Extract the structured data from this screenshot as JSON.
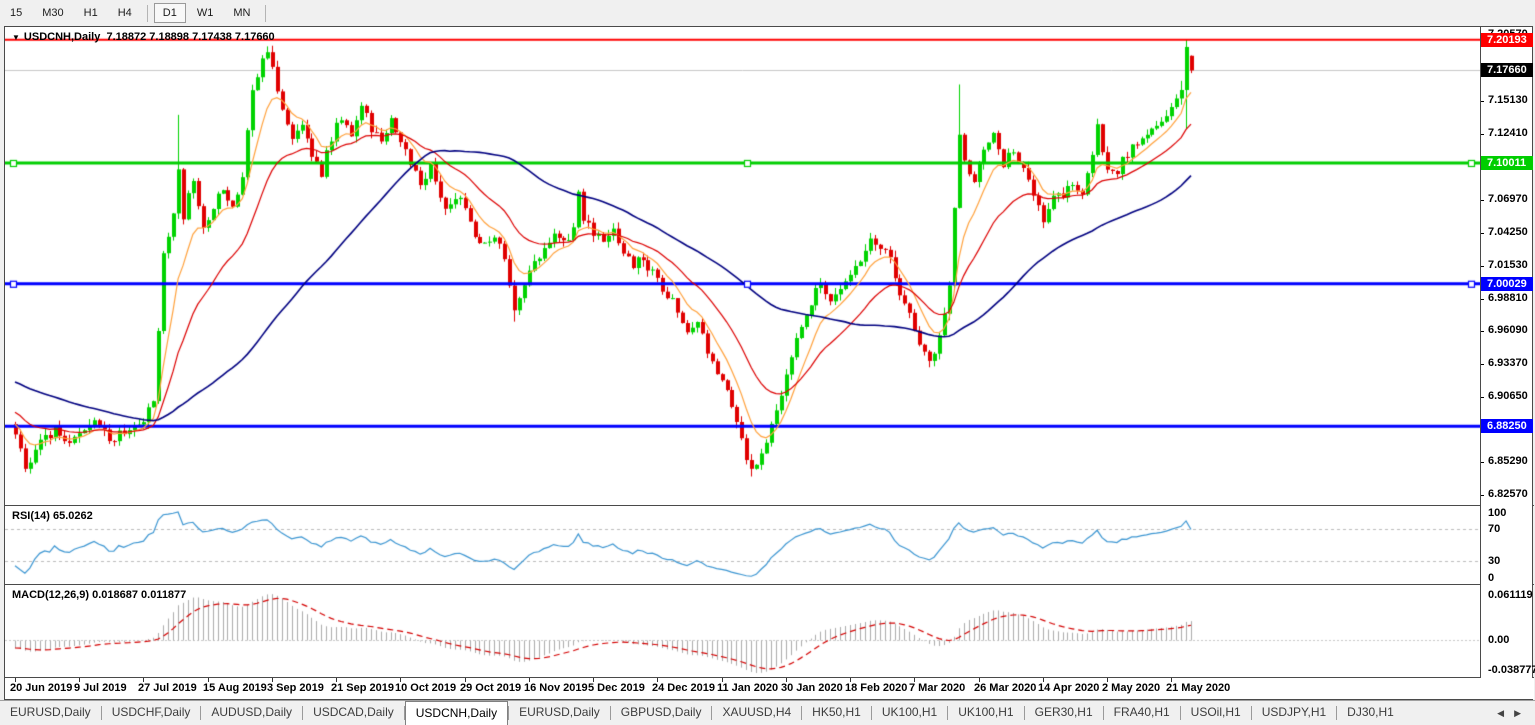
{
  "toolbar": {
    "timeframes": [
      {
        "label": "15",
        "active": false,
        "sep_after": false
      },
      {
        "label": "M30",
        "active": false,
        "sep_after": false
      },
      {
        "label": "H1",
        "active": false,
        "sep_after": false
      },
      {
        "label": "H4",
        "active": false,
        "sep_after": true
      },
      {
        "label": "D1",
        "active": true,
        "sep_after": false
      },
      {
        "label": "W1",
        "active": false,
        "sep_after": false
      },
      {
        "label": "MN",
        "active": false,
        "sep_after": true
      }
    ]
  },
  "chart": {
    "title_symbol": "USDCNH,Daily",
    "title_ohlc": "7.18872 7.18898 7.17438 7.17660"
  },
  "indicators": {
    "rsi_label": "RSI(14) 65.0262",
    "macd_label": "MACD(12,26,9) 0.018687 0.011877",
    "rsi_ticks": [
      "100",
      "70",
      "30",
      "0"
    ],
    "macd_ticks": [
      "0.061119",
      "0.00",
      "-0.038777"
    ]
  },
  "chart_data": {
    "type": "candlestick",
    "symbol": "USDCNH",
    "timeframe": "Daily",
    "last_bar": {
      "open": 7.18872,
      "high": 7.18898,
      "low": 7.17438,
      "close": 7.1766
    },
    "num_bars": 239,
    "bars_per_x_tick": 13,
    "x_tick_labels": [
      "20 Jun 2019",
      "9 Jul 2019",
      "27 Jul 2019",
      "15 Aug 2019",
      "3 Sep 2019",
      "21 Sep 2019",
      "10 Oct 2019",
      "29 Oct 2019",
      "16 Nov 2019",
      "5 Dec 2019",
      "24 Dec 2019",
      "11 Jan 2020",
      "30 Jan 2020",
      "18 Feb 2020",
      "7 Mar 2020",
      "26 Mar 2020",
      "14 Apr 2020",
      "2 May 2020",
      "21 May 2020"
    ],
    "ylim": [
      6.81745,
      7.2125
    ],
    "y_ticks": [
      7.2057,
      7.1513,
      7.1241,
      7.0697,
      7.0425,
      7.0153,
      6.9881,
      6.9609,
      6.9337,
      6.9065,
      6.8529,
      6.8257
    ],
    "levels": [
      {
        "price": 7.20193,
        "badge": "7.20193",
        "color": "#ff0000",
        "width": 2,
        "badge_bg": "#ff0000",
        "handles": false,
        "is_bid": false
      },
      {
        "price": 7.1766,
        "badge": "7.17660",
        "color": "#c8c8c8",
        "width": 1,
        "badge_bg": "#000000",
        "handles": false,
        "is_bid": true
      },
      {
        "price": 7.10011,
        "badge": "7.10011",
        "color": "#00ce00",
        "width": 3,
        "badge_bg": "#00ce00",
        "handles": true,
        "is_bid": false
      },
      {
        "price": 7.00029,
        "badge": "7.00029",
        "color": "#0000ff",
        "width": 3,
        "badge_bg": "#0000ff",
        "handles": true,
        "is_bid": false
      },
      {
        "price": 6.8825,
        "badge": "6.88250",
        "color": "#0000ff",
        "width": 3,
        "badge_bg": "#0000ff",
        "handles": false,
        "is_bid": false
      }
    ],
    "colors": {
      "bull": "#00d300",
      "bear": "#e00000",
      "ma_fast": "#ffa23d",
      "ma_mid": "#dd0000",
      "ma_slow": "#000080",
      "rsi_line": "#3c96d2",
      "macd_hist": "#ababab",
      "macd_signal": "#d40000",
      "dashed_level": "#bbbbbb"
    },
    "ma_lines": [
      {
        "type": "ema",
        "period": 8,
        "color_key": "ma_fast"
      },
      {
        "type": "ema",
        "period": 21,
        "color_key": "ma_mid"
      },
      {
        "type": "sma",
        "period": 55,
        "color_key": "ma_slow"
      }
    ],
    "rsi": {
      "period": 14,
      "levels": [
        70,
        30
      ],
      "ylim": [
        0,
        100
      ],
      "current": 65.0262
    },
    "macd": {
      "fast": 12,
      "slow": 26,
      "signal": 9,
      "ylim": [
        -0.046,
        0.068
      ],
      "current": [
        0.018687,
        0.011877
      ]
    },
    "price_path": [
      [
        -70,
        6.975
      ],
      [
        -50,
        6.952
      ],
      [
        -30,
        6.925
      ],
      [
        -15,
        6.902
      ],
      [
        -8,
        6.891
      ],
      [
        -1,
        6.884
      ],
      [
        0,
        6.878
      ],
      [
        2,
        6.851
      ],
      [
        4,
        6.862
      ],
      [
        6,
        6.872
      ],
      [
        8,
        6.88
      ],
      [
        10,
        6.871
      ],
      [
        13,
        6.876
      ],
      [
        16,
        6.885
      ],
      [
        19,
        6.872
      ],
      [
        22,
        6.878
      ],
      [
        26,
        6.882
      ],
      [
        28,
        6.906
      ],
      [
        30,
        7.022
      ],
      [
        32,
        7.062
      ],
      [
        33,
        7.096
      ],
      [
        34,
        7.058
      ],
      [
        36,
        7.086
      ],
      [
        38,
        7.048
      ],
      [
        40,
        7.066
      ],
      [
        42,
        7.076
      ],
      [
        44,
        7.062
      ],
      [
        46,
        7.092
      ],
      [
        48,
        7.156
      ],
      [
        50,
        7.186
      ],
      [
        51,
        7.192
      ],
      [
        52,
        7.176
      ],
      [
        54,
        7.148
      ],
      [
        56,
        7.122
      ],
      [
        58,
        7.132
      ],
      [
        60,
        7.108
      ],
      [
        62,
        7.092
      ],
      [
        64,
        7.122
      ],
      [
        66,
        7.138
      ],
      [
        68,
        7.118
      ],
      [
        70,
        7.146
      ],
      [
        72,
        7.13
      ],
      [
        74,
        7.12
      ],
      [
        76,
        7.138
      ],
      [
        78,
        7.116
      ],
      [
        80,
        7.1
      ],
      [
        82,
        7.082
      ],
      [
        84,
        7.096
      ],
      [
        86,
        7.07
      ],
      [
        88,
        7.062
      ],
      [
        90,
        7.072
      ],
      [
        93,
        7.042
      ],
      [
        95,
        7.03
      ],
      [
        97,
        7.042
      ],
      [
        99,
        7.02
      ],
      [
        101,
        6.976
      ],
      [
        103,
        7.002
      ],
      [
        105,
        7.018
      ],
      [
        107,
        7.028
      ],
      [
        109,
        7.038
      ],
      [
        111,
        7.034
      ],
      [
        113,
        7.046
      ],
      [
        114,
        7.072
      ],
      [
        115,
        7.052
      ],
      [
        117,
        7.042
      ],
      [
        119,
        7.034
      ],
      [
        121,
        7.042
      ],
      [
        123,
        7.028
      ],
      [
        125,
        7.014
      ],
      [
        127,
        7.022
      ],
      [
        130,
        7.002
      ],
      [
        132,
        6.992
      ],
      [
        134,
        6.976
      ],
      [
        136,
        6.96
      ],
      [
        138,
        6.966
      ],
      [
        140,
        6.944
      ],
      [
        142,
        6.93
      ],
      [
        144,
        6.912
      ],
      [
        146,
        6.886
      ],
      [
        148,
        6.858
      ],
      [
        149,
        6.845
      ],
      [
        151,
        6.862
      ],
      [
        153,
        6.882
      ],
      [
        155,
        6.912
      ],
      [
        157,
        6.94
      ],
      [
        159,
        6.964
      ],
      [
        161,
        6.986
      ],
      [
        163,
        7.002
      ],
      [
        165,
        6.986
      ],
      [
        167,
        6.992
      ],
      [
        169,
        7.004
      ],
      [
        171,
        7.022
      ],
      [
        173,
        7.042
      ],
      [
        175,
        7.03
      ],
      [
        177,
        7.018
      ],
      [
        179,
        6.99
      ],
      [
        181,
        6.972
      ],
      [
        183,
        6.95
      ],
      [
        185,
        6.934
      ],
      [
        187,
        6.956
      ],
      [
        189,
        7.0
      ],
      [
        190,
        7.06
      ],
      [
        191,
        7.12
      ],
      [
        192,
        7.098
      ],
      [
        194,
        7.086
      ],
      [
        196,
        7.108
      ],
      [
        198,
        7.124
      ],
      [
        200,
        7.1
      ],
      [
        202,
        7.112
      ],
      [
        204,
        7.094
      ],
      [
        206,
        7.076
      ],
      [
        208,
        7.052
      ],
      [
        210,
        7.07
      ],
      [
        212,
        7.076
      ],
      [
        214,
        7.082
      ],
      [
        216,
        7.07
      ],
      [
        218,
        7.108
      ],
      [
        219,
        7.128
      ],
      [
        221,
        7.098
      ],
      [
        223,
        7.094
      ],
      [
        225,
        7.108
      ],
      [
        227,
        7.118
      ],
      [
        229,
        7.124
      ],
      [
        231,
        7.134
      ],
      [
        233,
        7.142
      ],
      [
        235,
        7.152
      ],
      [
        236,
        7.162
      ],
      [
        237,
        7.196
      ],
      [
        238,
        7.1766
      ]
    ],
    "wick_overrides": {
      "33": {
        "h": 7.1399
      },
      "51": {
        "h": 7.1965
      },
      "101": {
        "l": 6.969
      },
      "149": {
        "l": 6.841
      },
      "191": {
        "h": 7.165
      },
      "236": {
        "h": 7.168
      },
      "237": {
        "h": 7.20193,
        "l": 7.128
      },
      "238": {
        "h": 7.18898,
        "l": 7.17438
      }
    }
  },
  "tabs": {
    "items": [
      {
        "label": "EURUSD,Daily",
        "active": false
      },
      {
        "label": "USDCHF,Daily",
        "active": false
      },
      {
        "label": "AUDUSD,Daily",
        "active": false
      },
      {
        "label": "USDCAD,Daily",
        "active": false
      },
      {
        "label": "USDCNH,Daily",
        "active": true
      },
      {
        "label": "EURUSD,Daily",
        "active": false
      },
      {
        "label": "GBPUSD,Daily",
        "active": false
      },
      {
        "label": "XAUUSD,H4",
        "active": false
      },
      {
        "label": "HK50,H1",
        "active": false
      },
      {
        "label": "UK100,H1",
        "active": false
      },
      {
        "label": "UK100,H1",
        "active": false
      },
      {
        "label": "GER30,H1",
        "active": false
      },
      {
        "label": "FRA40,H1",
        "active": false
      },
      {
        "label": "USOil,H1",
        "active": false
      },
      {
        "label": "USDJPY,H1",
        "active": false
      },
      {
        "label": "DJ30,H1",
        "active": false
      }
    ],
    "scroll_left": "◀",
    "scroll_right": "▶"
  }
}
